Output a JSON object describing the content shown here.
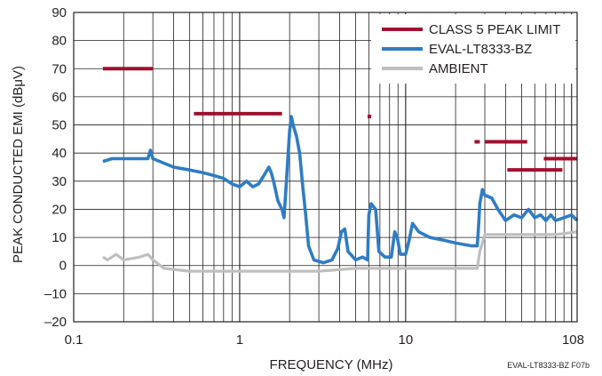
{
  "chart_data": {
    "type": "line",
    "xlabel": "FREQUENCY (MHz)",
    "ylabel": "PEAK CONDUCTED EMI (dBμV)",
    "x_scale": "log",
    "xlim": [
      0.1,
      108
    ],
    "ylim": [
      -20,
      90
    ],
    "x_ticks": [
      {
        "value": 0.1,
        "label": "0.1"
      },
      {
        "value": 1,
        "label": "1"
      },
      {
        "value": 10,
        "label": "10"
      },
      {
        "value": 108,
        "label": "108"
      }
    ],
    "y_ticks": [
      {
        "value": 90,
        "label": "90"
      },
      {
        "value": 80,
        "label": "80"
      },
      {
        "value": 70,
        "label": "70"
      },
      {
        "value": 60,
        "label": "60"
      },
      {
        "value": 50,
        "label": "50"
      },
      {
        "value": 40,
        "label": "40"
      },
      {
        "value": 30,
        "label": "30"
      },
      {
        "value": 20,
        "label": "20"
      },
      {
        "value": 10,
        "label": "10"
      },
      {
        "value": 0,
        "label": "0"
      },
      {
        "value": -10,
        "label": "–10"
      },
      {
        "value": -20,
        "label": "–20"
      }
    ],
    "grid": true,
    "legend_position": "top-right",
    "footnote": "EVAL-LT8333-BZ F07b",
    "series": [
      {
        "name": "CLASS 5 PEAK LIMIT",
        "color": "#a0102e",
        "style": "segments",
        "segments": [
          {
            "x": [
              0.15,
              0.3
            ],
            "y": [
              70,
              70
            ]
          },
          {
            "x": [
              0.53,
              1.8
            ],
            "y": [
              54,
              54
            ]
          },
          {
            "x": [
              5.9,
              6.2
            ],
            "y": [
              53,
              53
            ]
          },
          {
            "x": [
              26,
              28
            ],
            "y": [
              44,
              44
            ]
          },
          {
            "x": [
              30,
              54
            ],
            "y": [
              44,
              44
            ]
          },
          {
            "x": [
              41,
              88
            ],
            "y": [
              34,
              34
            ]
          },
          {
            "x": [
              68,
              108
            ],
            "y": [
              38,
              38
            ]
          }
        ]
      },
      {
        "name": "EVAL-LT8333-BZ",
        "color": "#2f7cc4",
        "style": "line",
        "points": [
          [
            0.15,
            37
          ],
          [
            0.17,
            38
          ],
          [
            0.2,
            38
          ],
          [
            0.25,
            38
          ],
          [
            0.28,
            38
          ],
          [
            0.29,
            41
          ],
          [
            0.3,
            38
          ],
          [
            0.4,
            35
          ],
          [
            0.5,
            34
          ],
          [
            0.6,
            33
          ],
          [
            0.7,
            32
          ],
          [
            0.8,
            31
          ],
          [
            0.9,
            29
          ],
          [
            1.0,
            28
          ],
          [
            1.1,
            30
          ],
          [
            1.2,
            28
          ],
          [
            1.3,
            29
          ],
          [
            1.4,
            32
          ],
          [
            1.5,
            35
          ],
          [
            1.55,
            33
          ],
          [
            1.6,
            30
          ],
          [
            1.7,
            23
          ],
          [
            1.8,
            20
          ],
          [
            1.85,
            17
          ],
          [
            1.9,
            27
          ],
          [
            2.0,
            48
          ],
          [
            2.05,
            53
          ],
          [
            2.1,
            50
          ],
          [
            2.2,
            46
          ],
          [
            2.3,
            40
          ],
          [
            2.4,
            28
          ],
          [
            2.5,
            18
          ],
          [
            2.6,
            7
          ],
          [
            2.8,
            2
          ],
          [
            3.2,
            1
          ],
          [
            3.6,
            2
          ],
          [
            3.9,
            6
          ],
          [
            4.1,
            12
          ],
          [
            4.3,
            13
          ],
          [
            4.5,
            5
          ],
          [
            5.0,
            2
          ],
          [
            5.5,
            3
          ],
          [
            5.9,
            2
          ],
          [
            6.0,
            18
          ],
          [
            6.2,
            22
          ],
          [
            6.6,
            20
          ],
          [
            6.9,
            5
          ],
          [
            7.5,
            3
          ],
          [
            8.2,
            3
          ],
          [
            8.6,
            12
          ],
          [
            8.9,
            10
          ],
          [
            9.3,
            4
          ],
          [
            10.0,
            4
          ],
          [
            10.5,
            9
          ],
          [
            11.0,
            15
          ],
          [
            12.0,
            12
          ],
          [
            14.0,
            10
          ],
          [
            17.0,
            9
          ],
          [
            20.0,
            8
          ],
          [
            25.0,
            7
          ],
          [
            27.0,
            7
          ],
          [
            27.5,
            14
          ],
          [
            28.0,
            22
          ],
          [
            29.0,
            27
          ],
          [
            30.0,
            25
          ],
          [
            33.0,
            24
          ],
          [
            36.0,
            20
          ],
          [
            40.0,
            16
          ],
          [
            45.0,
            18
          ],
          [
            50.0,
            17
          ],
          [
            55.0,
            20
          ],
          [
            60.0,
            17
          ],
          [
            65.0,
            18
          ],
          [
            70.0,
            16
          ],
          [
            75.0,
            18
          ],
          [
            80.0,
            16
          ],
          [
            90.0,
            17
          ],
          [
            100.0,
            18
          ],
          [
            108.0,
            16
          ]
        ]
      },
      {
        "name": "AMBIENT",
        "color": "#bfbfbf",
        "style": "line",
        "points": [
          [
            0.15,
            3
          ],
          [
            0.16,
            2
          ],
          [
            0.18,
            4
          ],
          [
            0.2,
            2
          ],
          [
            0.25,
            3
          ],
          [
            0.28,
            4
          ],
          [
            0.3,
            2
          ],
          [
            0.35,
            -1
          ],
          [
            0.5,
            -2
          ],
          [
            0.7,
            -2
          ],
          [
            1.0,
            -2
          ],
          [
            1.5,
            -2
          ],
          [
            2.0,
            -2
          ],
          [
            3.0,
            -2
          ],
          [
            5.0,
            -1
          ],
          [
            10.0,
            -1
          ],
          [
            20.0,
            -1
          ],
          [
            27.0,
            -1
          ],
          [
            28.0,
            5
          ],
          [
            30.0,
            11
          ],
          [
            40.0,
            11
          ],
          [
            60.0,
            11
          ],
          [
            80.0,
            11
          ],
          [
            108.0,
            12
          ]
        ]
      }
    ]
  }
}
